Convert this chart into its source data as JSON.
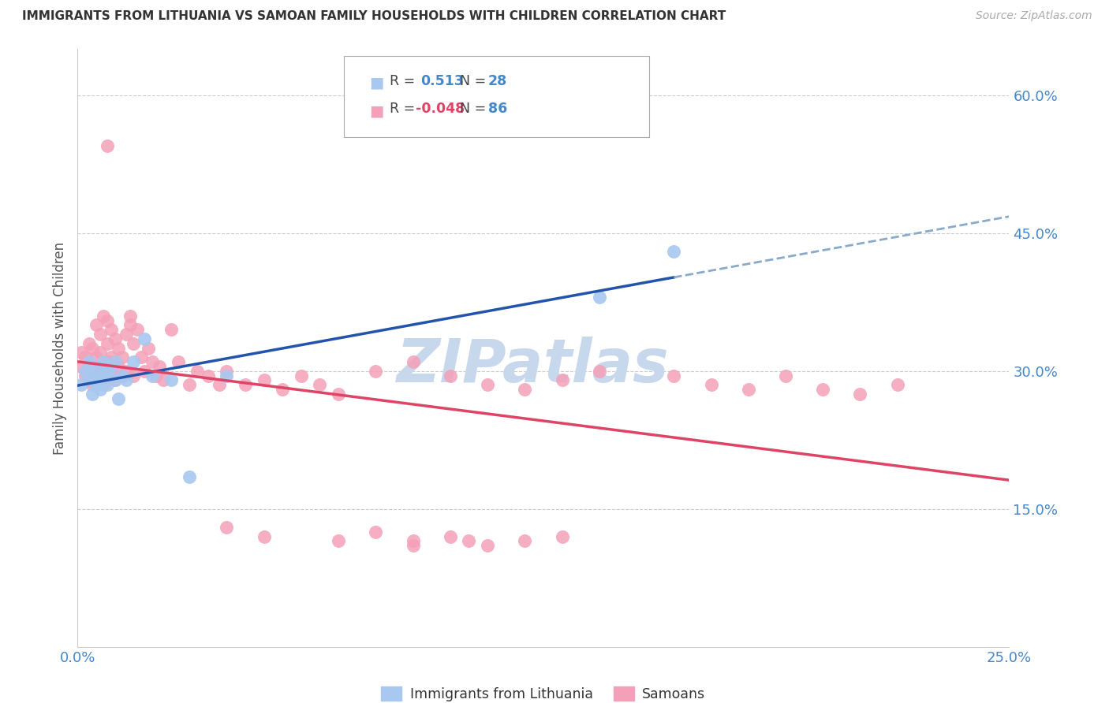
{
  "title": "IMMIGRANTS FROM LITHUANIA VS SAMOAN FAMILY HOUSEHOLDS WITH CHILDREN CORRELATION CHART",
  "source": "Source: ZipAtlas.com",
  "xlabel_bottom_left": "0.0%",
  "xlabel_bottom_right": "25.0%",
  "ylabel": "Family Households with Children",
  "ytick_labels": [
    "60.0%",
    "45.0%",
    "30.0%",
    "15.0%"
  ],
  "ytick_values": [
    0.6,
    0.45,
    0.3,
    0.15
  ],
  "xlim": [
    0.0,
    0.25
  ],
  "ylim": [
    0.0,
    0.65
  ],
  "blue_color": "#a8c8f0",
  "pink_color": "#f4a0b8",
  "blue_line_color": "#2255aa",
  "pink_line_color": "#dd4466",
  "dashed_line_color": "#88aacc",
  "axis_label_color": "#4488cc",
  "grid_color": "#cccccc",
  "watermark_color": "#c8d8ec",
  "lithuania_x": [
    0.001,
    0.002,
    0.003,
    0.003,
    0.004,
    0.004,
    0.005,
    0.005,
    0.006,
    0.006,
    0.007,
    0.007,
    0.008,
    0.008,
    0.009,
    0.01,
    0.01,
    0.011,
    0.012,
    0.013,
    0.015,
    0.018,
    0.02,
    0.025,
    0.03,
    0.04,
    0.14,
    0.16
  ],
  "lithuania_y": [
    0.285,
    0.3,
    0.295,
    0.31,
    0.275,
    0.29,
    0.3,
    0.285,
    0.295,
    0.28,
    0.31,
    0.295,
    0.285,
    0.3,
    0.305,
    0.31,
    0.29,
    0.27,
    0.295,
    0.29,
    0.31,
    0.335,
    0.295,
    0.29,
    0.185,
    0.295,
    0.38,
    0.43
  ],
  "samoan_x": [
    0.001,
    0.001,
    0.002,
    0.002,
    0.003,
    0.003,
    0.003,
    0.004,
    0.004,
    0.004,
    0.005,
    0.005,
    0.005,
    0.006,
    0.006,
    0.006,
    0.007,
    0.007,
    0.007,
    0.008,
    0.008,
    0.008,
    0.008,
    0.009,
    0.009,
    0.009,
    0.01,
    0.01,
    0.01,
    0.011,
    0.011,
    0.012,
    0.012,
    0.013,
    0.013,
    0.014,
    0.014,
    0.015,
    0.015,
    0.016,
    0.017,
    0.018,
    0.019,
    0.02,
    0.021,
    0.022,
    0.023,
    0.025,
    0.027,
    0.03,
    0.032,
    0.035,
    0.038,
    0.04,
    0.045,
    0.05,
    0.055,
    0.06,
    0.065,
    0.07,
    0.08,
    0.09,
    0.1,
    0.11,
    0.12,
    0.13,
    0.14,
    0.16,
    0.17,
    0.18,
    0.19,
    0.2,
    0.21,
    0.22,
    0.08,
    0.09,
    0.1,
    0.11,
    0.12,
    0.13,
    0.008,
    0.04,
    0.05,
    0.07,
    0.09,
    0.105
  ],
  "samoan_y": [
    0.305,
    0.32,
    0.295,
    0.315,
    0.29,
    0.31,
    0.33,
    0.285,
    0.305,
    0.325,
    0.295,
    0.315,
    0.35,
    0.3,
    0.32,
    0.34,
    0.285,
    0.305,
    0.36,
    0.29,
    0.31,
    0.33,
    0.355,
    0.295,
    0.315,
    0.345,
    0.29,
    0.31,
    0.335,
    0.305,
    0.325,
    0.295,
    0.315,
    0.3,
    0.34,
    0.35,
    0.36,
    0.295,
    0.33,
    0.345,
    0.315,
    0.3,
    0.325,
    0.31,
    0.295,
    0.305,
    0.29,
    0.345,
    0.31,
    0.285,
    0.3,
    0.295,
    0.285,
    0.3,
    0.285,
    0.29,
    0.28,
    0.295,
    0.285,
    0.275,
    0.3,
    0.31,
    0.295,
    0.285,
    0.28,
    0.29,
    0.3,
    0.295,
    0.285,
    0.28,
    0.295,
    0.28,
    0.275,
    0.285,
    0.125,
    0.115,
    0.12,
    0.11,
    0.115,
    0.12,
    0.545,
    0.13,
    0.12,
    0.115,
    0.11,
    0.115
  ]
}
